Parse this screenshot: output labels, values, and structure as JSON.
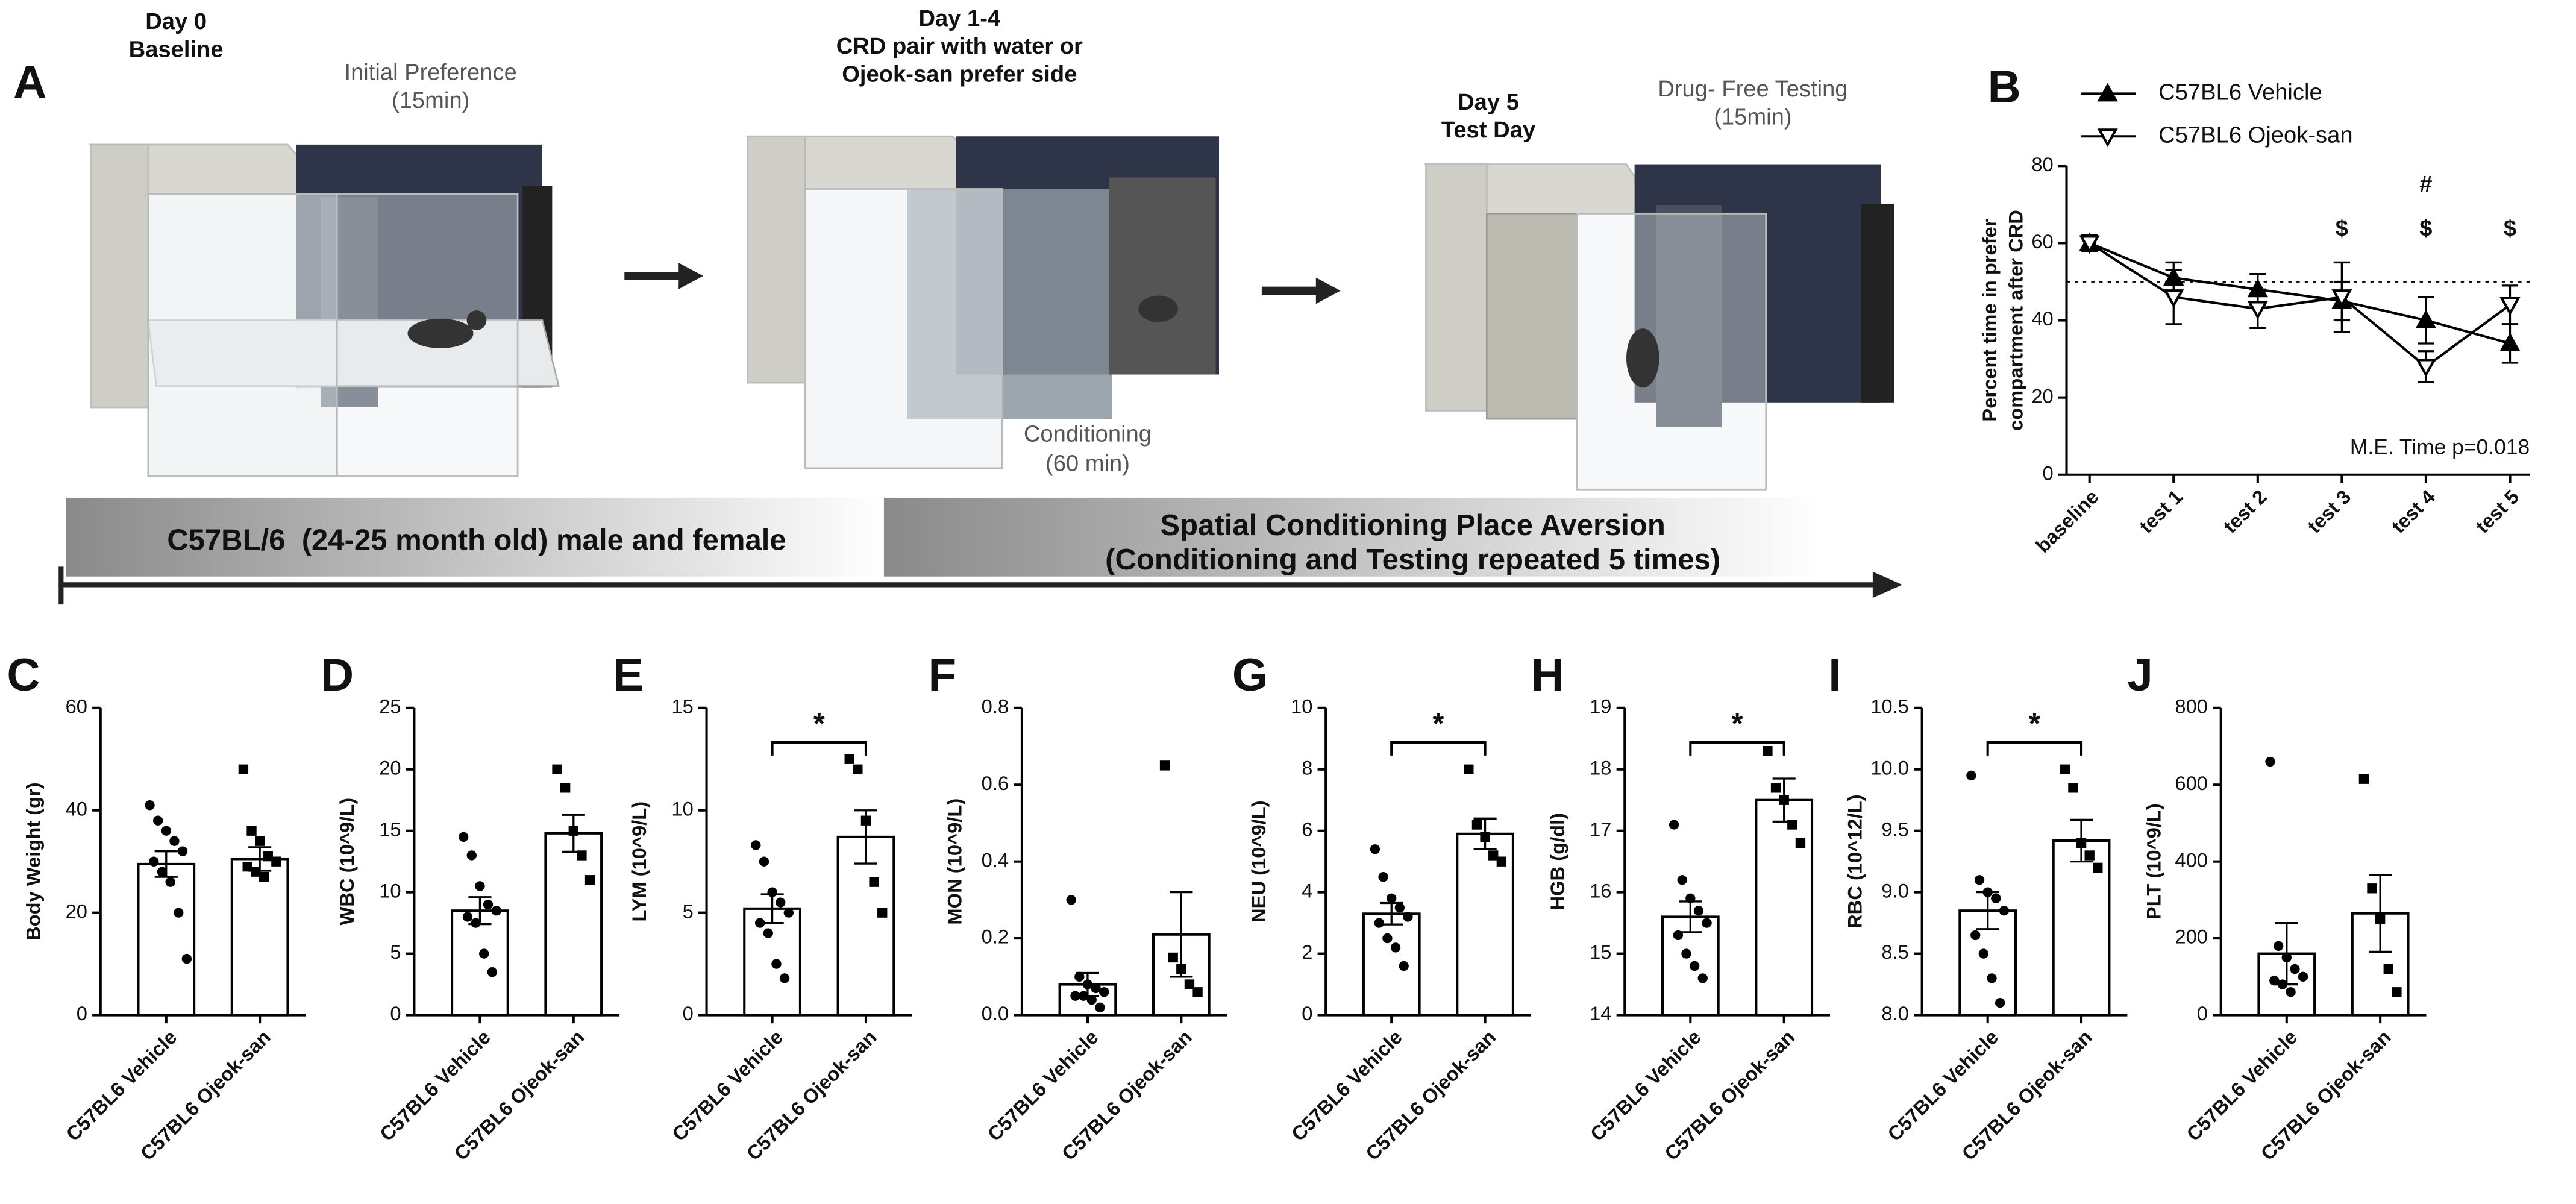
{
  "diagram": {
    "label": "A",
    "stages": [
      {
        "title": [
          "Day 0",
          "Baseline"
        ],
        "phase": "Initial Preference",
        "duration": "(15min)"
      },
      {
        "title": [
          "Day 1-4",
          "CRD pair with water or",
          "Ojeok-san prefer side"
        ],
        "phase": "Conditioning",
        "duration": "(60 min)"
      },
      {
        "title": [
          "Day 5",
          "Test Day"
        ],
        "phase": "Drug- Free Testing",
        "duration": "(15min)"
      }
    ],
    "timeline": [
      "C57BL/6  (24-25 month old) male and female",
      [
        "Spatial Conditioning Place Aversion",
        "(Conditioning and Testing repeated 5 times)"
      ]
    ]
  },
  "chart_data": [
    {
      "type": "line",
      "panel": "B",
      "ylabel": [
        "Percent time in prefer",
        "compartment after CRD"
      ],
      "categories": [
        "baseline",
        "test 1",
        "test 2",
        "test 3",
        "test 4",
        "test 5"
      ],
      "series": [
        {
          "name": "C57BL6 Vehicle",
          "color": "#000000",
          "marker": "triangle-up",
          "values": [
            60,
            51,
            48,
            45,
            40,
            34
          ],
          "errors": [
            2,
            4,
            4,
            5,
            6,
            5
          ]
        },
        {
          "name": "C57BL6 Ojeok-san",
          "color": "#000000",
          "marker": "triangle-down-open",
          "values": [
            60,
            46,
            43,
            46,
            28,
            44
          ],
          "errors": [
            2,
            7,
            5,
            9,
            4,
            5
          ]
        }
      ],
      "ylim": [
        0,
        80
      ],
      "yticks": [
        0,
        20,
        40,
        60,
        80
      ],
      "reference_line": 50,
      "legend": "top-left",
      "annotation": "M.E. Time p=0.018",
      "significance": [
        {
          "symbol": "$",
          "categories": [
            "test 3",
            "test 4",
            "test 5"
          ]
        },
        {
          "symbol": "#",
          "categories": [
            "test 4"
          ]
        }
      ]
    },
    {
      "type": "bar",
      "panel": "C",
      "ylabel": "Body Weight (gr)",
      "categories": [
        "C57BL6 Vehicle",
        "C57BL6 Ojeok-san"
      ],
      "values": [
        29.5,
        30.5
      ],
      "errors": [
        2.5,
        2.3
      ],
      "points": [
        [
          41,
          38,
          36,
          34,
          32,
          30,
          28,
          26,
          20,
          11
        ],
        [
          48,
          36,
          34,
          31,
          30,
          29,
          28,
          27
        ]
      ],
      "ylim": [
        0,
        60
      ],
      "yticks": [
        0,
        20,
        40,
        60
      ],
      "color": "#000000"
    },
    {
      "type": "bar",
      "panel": "D",
      "ylabel": "WBC (10^9/L)",
      "categories": [
        "C57BL6 Vehicle",
        "C57BL6 Ojeok-san"
      ],
      "values": [
        8.5,
        14.8
      ],
      "errors": [
        1.1,
        1.5
      ],
      "points": [
        [
          14.5,
          13,
          10.5,
          9,
          8.5,
          8,
          7.5,
          5,
          3.5
        ],
        [
          20,
          18.5,
          15,
          13,
          11
        ]
      ],
      "ylim": [
        0,
        25
      ],
      "yticks": [
        0,
        5,
        10,
        15,
        20,
        25
      ],
      "color": "#000000"
    },
    {
      "type": "bar",
      "panel": "E",
      "ylabel": "LYM (10^9/L)",
      "categories": [
        "C57BL6 Vehicle",
        "C57BL6 Ojeok-san"
      ],
      "values": [
        5.2,
        8.7
      ],
      "errors": [
        0.7,
        1.3
      ],
      "points": [
        [
          8.3,
          7.5,
          6,
          5.5,
          5,
          4.5,
          4,
          2.5,
          1.8
        ],
        [
          12.5,
          12,
          9.5,
          6.5,
          5
        ]
      ],
      "ylim": [
        0,
        15
      ],
      "yticks": [
        0,
        5,
        10,
        15
      ],
      "significance": "*",
      "color": "#000000"
    },
    {
      "type": "bar",
      "panel": "F",
      "ylabel": "MON (10^9/L)",
      "categories": [
        "C57BL6 Vehicle",
        "C57BL6 Ojeok-san"
      ],
      "values": [
        0.08,
        0.21
      ],
      "errors": [
        0.03,
        0.11
      ],
      "points": [
        [
          0.3,
          0.1,
          0.08,
          0.07,
          0.06,
          0.05,
          0.05,
          0.04,
          0.02
        ],
        [
          0.65,
          0.15,
          0.12,
          0.08,
          0.06
        ]
      ],
      "ylim": [
        0,
        0.8
      ],
      "yticks": [
        {
          "value": 0,
          "label": "0.0"
        },
        0.2,
        0.4,
        0.6,
        0.8
      ],
      "color": "#000000"
    },
    {
      "type": "bar",
      "panel": "G",
      "ylabel": "NEU (10^9/L)",
      "categories": [
        "C57BL6 Vehicle",
        "C57BL6 Ojeok-san"
      ],
      "values": [
        3.3,
        5.9
      ],
      "errors": [
        0.35,
        0.5
      ],
      "points": [
        [
          5.4,
          4.5,
          3.8,
          3.5,
          3.2,
          3.0,
          2.5,
          2.2,
          1.6
        ],
        [
          8,
          6.2,
          5.8,
          5.2,
          5.0
        ]
      ],
      "ylim": [
        0,
        10
      ],
      "yticks": [
        0,
        2,
        4,
        6,
        8,
        10
      ],
      "significance": "*",
      "color": "#000000"
    },
    {
      "type": "bar",
      "panel": "H",
      "ylabel": "HGB (g/dl)",
      "categories": [
        "C57BL6 Vehicle",
        "C57BL6 Ojeok-san"
      ],
      "values": [
        15.6,
        17.5
      ],
      "errors": [
        0.25,
        0.35
      ],
      "points": [
        [
          17.1,
          16.2,
          15.9,
          15.7,
          15.5,
          15.3,
          15.0,
          14.8,
          14.6
        ],
        [
          18.3,
          17.7,
          17.5,
          17.1,
          16.8
        ]
      ],
      "ylim": [
        14,
        19
      ],
      "yticks": [
        14,
        15,
        16,
        17,
        18,
        19
      ],
      "significance": "*",
      "color": "#000000"
    },
    {
      "type": "bar",
      "panel": "I",
      "ylabel": "RBC (10^12/L)",
      "categories": [
        "C57BL6 Vehicle",
        "C57BL6 Ojeok-san"
      ],
      "values": [
        8.85,
        9.42
      ],
      "errors": [
        0.15,
        0.17
      ],
      "points": [
        [
          9.95,
          9.1,
          9.0,
          8.95,
          8.85,
          8.65,
          8.5,
          8.3,
          8.1
        ],
        [
          10.0,
          9.85,
          9.4,
          9.3,
          9.2
        ]
      ],
      "ylim": [
        8,
        10.5
      ],
      "yticks": [
        {
          "value": 8,
          "label": "8.0"
        },
        8.5,
        {
          "value": 9,
          "label": "9.0"
        },
        9.5,
        {
          "value": 10,
          "label": "10.0"
        },
        10.5
      ],
      "significance": "*",
      "color": "#000000"
    },
    {
      "type": "bar",
      "panel": "J",
      "ylabel": "PLT (10^9/L)",
      "categories": [
        "C57BL6 Vehicle",
        "C57BL6 Ojeok-san"
      ],
      "values": [
        160,
        265
      ],
      "errors": [
        80,
        100
      ],
      "points": [
        [
          660,
          180,
          150,
          120,
          100,
          90,
          80,
          60
        ],
        [
          615,
          330,
          250,
          120,
          60
        ]
      ],
      "ylim": [
        0,
        800
      ],
      "yticks": [
        0,
        200,
        400,
        600,
        800
      ],
      "color": "#000000"
    }
  ]
}
